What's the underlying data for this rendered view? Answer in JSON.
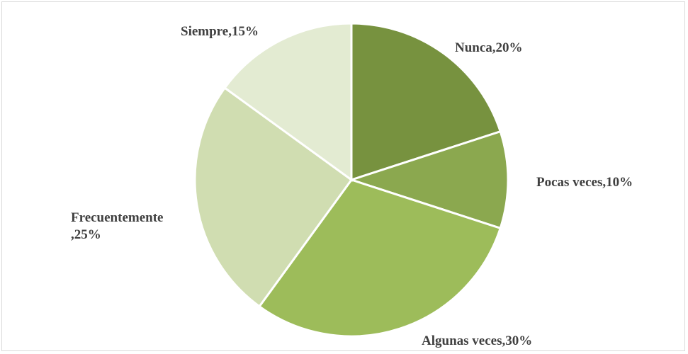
{
  "chart_data": {
    "type": "pie",
    "categories": [
      "Nunca",
      "Pocas veces",
      "Algunas veces",
      "Frecuentemente",
      "Siempre"
    ],
    "values": [
      20,
      10,
      30,
      25,
      15
    ],
    "value_labels": [
      "Nunca,20%",
      "Pocas veces,10%",
      "Algunas veces,30%",
      "Frecuentemente ,25%",
      "Siempre,15%"
    ],
    "colors": [
      "#77923f",
      "#8ba84f",
      "#9dbc5a",
      "#d0ddb1",
      "#e3ebd2"
    ]
  }
}
